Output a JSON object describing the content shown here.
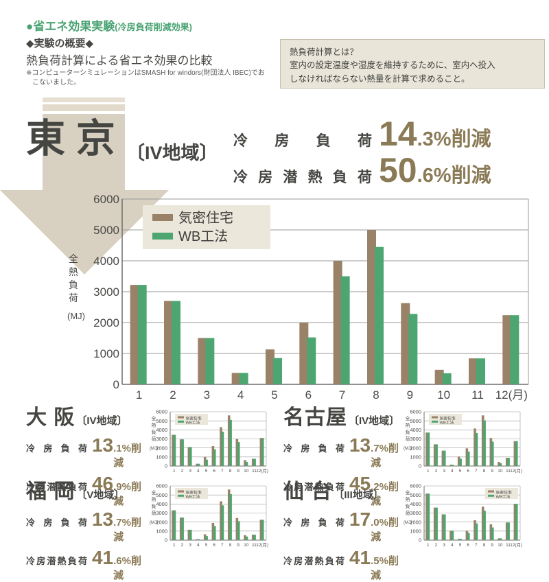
{
  "colors": {
    "green_heading": "#4aa374",
    "accent_brown": "#8a7a56",
    "dark_text": "#454542",
    "arrow_beige": "#d8d0c0",
    "box_beige": "#e9e5d9",
    "bar_kimitsu": "#998268",
    "bar_wb": "#4da671"
  },
  "header": {
    "badge_bullet": "●",
    "badge_title": "省エネ効果実験",
    "badge_sub": "(冷房負荷削減効果)",
    "section_heading": "◆実験の概要◆",
    "subtitle": "熱負荷計算による省エネ効果の比較",
    "note_line1": "※コンピューターシミュレーションはSMASH for windors(財団法人 IBEC)でお",
    "note_line2": "こないました。"
  },
  "info_box": {
    "title": "熱負荷計算とは？",
    "body_line1": "室内の設定温度や湿度を維持するために、室内へ投入",
    "body_line2": "しなければならない熱量を計算で求めること。"
  },
  "tokyo": {
    "city": "東 京",
    "region": "〔IV地域〕",
    "stats": [
      {
        "label": "冷 房 負 荷",
        "num": "14",
        "rest": ".3%削減"
      },
      {
        "label": "冷房潜熱負荷",
        "num": "50",
        "rest": ".6%削減"
      }
    ]
  },
  "cities": [
    {
      "id": "osaka",
      "city": "大 阪",
      "region": "〔IV地域〕",
      "stats": [
        {
          "label": "冷 房 負 荷",
          "num": "13",
          "rest": ".1%削減"
        },
        {
          "label": "冷房潜熱負荷",
          "num": "46",
          "rest": ".9%削減"
        }
      ]
    },
    {
      "id": "nagoya",
      "city": "名古屋",
      "region": "〔IV地域〕",
      "stats": [
        {
          "label": "冷 房 負 荷",
          "num": "13",
          "rest": ".7%削減"
        },
        {
          "label": "冷房潜熱負荷",
          "num": "45",
          "rest": ".2%削減"
        }
      ]
    },
    {
      "id": "fukuoka",
      "city": "福 岡",
      "region": "〔V地域〕",
      "stats": [
        {
          "label": "冷 房 負 荷",
          "num": "13",
          "rest": ".7%削減"
        },
        {
          "label": "冷房潜熱負荷",
          "num": "41",
          "rest": ".6%削減"
        }
      ]
    },
    {
      "id": "sendai",
      "city": "仙 台",
      "region": "〔III地域〕",
      "stats": [
        {
          "label": "冷 房 負 荷",
          "num": "17",
          "rest": ".0%削減"
        },
        {
          "label": "冷房潜熱負荷",
          "num": "41",
          "rest": ".5%削減"
        }
      ]
    }
  ],
  "chart_data": [
    {
      "id": "tokyo",
      "type": "bar",
      "categories": [
        "1",
        "2",
        "3",
        "4",
        "5",
        "6",
        "7",
        "8",
        "9",
        "10",
        "11",
        "12"
      ],
      "x_suffix": "(月)",
      "ylabel": "全熱負荷",
      "ylabel_unit": "(MJ)",
      "ylim": [
        0,
        6000
      ],
      "ytick_step": 1000,
      "grid": true,
      "legend_pos": "top-left",
      "series": [
        {
          "name": "気密住宅",
          "color": "#998268",
          "values": [
            3220,
            2700,
            1500,
            370,
            1130,
            2000,
            4000,
            5000,
            2630,
            470,
            840,
            2240
          ]
        },
        {
          "name": "WB工法",
          "color": "#4da671",
          "values": [
            3220,
            2700,
            1500,
            370,
            850,
            1520,
            3500,
            4450,
            2280,
            360,
            840,
            2240
          ]
        }
      ]
    },
    {
      "id": "osaka",
      "type": "bar",
      "categories": [
        "1",
        "2",
        "3",
        "4",
        "5",
        "6",
        "7",
        "8",
        "9",
        "10",
        "11",
        "12"
      ],
      "x_suffix": "(月)",
      "ylabel": "全熱負荷",
      "ylabel_unit": "(MJ)",
      "ylim": [
        0,
        6000
      ],
      "ytick_step": 1000,
      "grid": true,
      "legend_pos": "top-left",
      "series": [
        {
          "name": "気密住宅",
          "color": "#998268",
          "values": [
            3450,
            2950,
            2100,
            250,
            1000,
            2200,
            4300,
            5600,
            3000,
            650,
            800,
            3100
          ]
        },
        {
          "name": "WB工法",
          "color": "#4da671",
          "values": [
            3450,
            2950,
            2100,
            250,
            700,
            1850,
            3800,
            5100,
            2650,
            450,
            800,
            3100
          ]
        }
      ]
    },
    {
      "id": "nagoya",
      "type": "bar",
      "categories": [
        "1",
        "2",
        "3",
        "4",
        "5",
        "6",
        "7",
        "8",
        "9",
        "10",
        "11",
        "12"
      ],
      "x_suffix": "(月)",
      "ylabel": "全熱負荷",
      "ylabel_unit": "(MJ)",
      "ylim": [
        0,
        6000
      ],
      "ytick_step": 1000,
      "grid": true,
      "legend_pos": "top-left",
      "series": [
        {
          "name": "気密住宅",
          "color": "#998268",
          "values": [
            3700,
            2400,
            1700,
            150,
            1050,
            1950,
            4150,
            5600,
            3100,
            450,
            900,
            2750
          ]
        },
        {
          "name": "WB工法",
          "color": "#4da671",
          "values": [
            3700,
            2400,
            1700,
            150,
            800,
            1600,
            3650,
            5050,
            2700,
            300,
            900,
            2750
          ]
        }
      ]
    },
    {
      "id": "fukuoka",
      "type": "bar",
      "categories": [
        "1",
        "2",
        "3",
        "4",
        "5",
        "6",
        "7",
        "8",
        "9",
        "10",
        "11",
        "12"
      ],
      "x_suffix": "(月)",
      "ylabel": "全熱負荷",
      "ylabel_unit": "(MJ)",
      "ylim": [
        0,
        6000
      ],
      "ytick_step": 1000,
      "grid": true,
      "legend_pos": "top-left",
      "series": [
        {
          "name": "気密住宅",
          "color": "#998268",
          "values": [
            3300,
            2500,
            1150,
            100,
            650,
            1900,
            4300,
            5600,
            2450,
            550,
            600,
            2250
          ]
        },
        {
          "name": "WB工法",
          "color": "#4da671",
          "values": [
            3300,
            2500,
            1150,
            100,
            450,
            1550,
            3850,
            5100,
            2100,
            400,
            600,
            2250
          ]
        }
      ]
    },
    {
      "id": "sendai",
      "type": "bar",
      "categories": [
        "1",
        "2",
        "3",
        "4",
        "5",
        "6",
        "7",
        "8",
        "9",
        "10",
        "11",
        "12"
      ],
      "x_suffix": "(月)",
      "ylabel": "全熱負荷",
      "ylabel_unit": "(MJ)",
      "ylim": [
        0,
        6000
      ],
      "ytick_step": 1000,
      "grid": true,
      "legend_pos": "top-right",
      "series": [
        {
          "name": "気密住宅",
          "color": "#998268",
          "values": [
            5150,
            3600,
            2850,
            1050,
            150,
            1050,
            2200,
            3700,
            1750,
            200,
            1950,
            4000
          ]
        },
        {
          "name": "WB工法",
          "color": "#4da671",
          "values": [
            5150,
            3600,
            2850,
            1050,
            150,
            800,
            1850,
            3250,
            1400,
            200,
            1950,
            4000
          ]
        }
      ]
    }
  ]
}
